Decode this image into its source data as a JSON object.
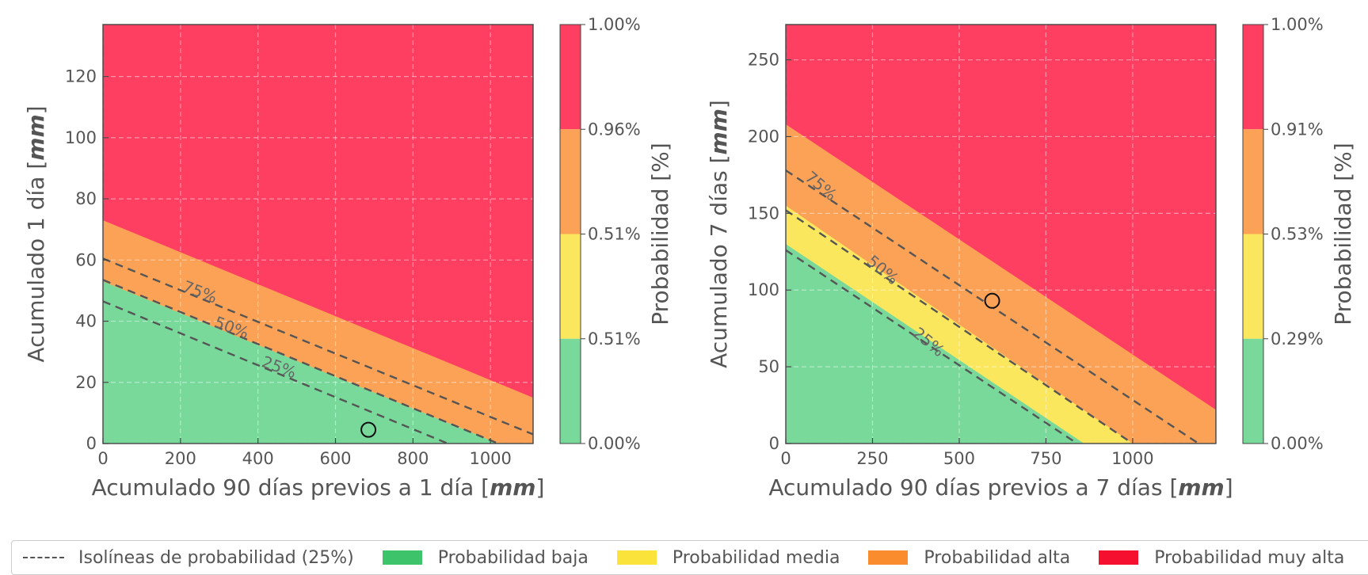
{
  "colors": {
    "low": "#78d99b",
    "medium": "#fbe75d",
    "high": "#fca256",
    "very_high": "#fe3f62",
    "legend_low": "#3dc46a",
    "legend_medium": "#fae43b",
    "legend_high": "#fb8c2d",
    "legend_very_high": "#f5102f",
    "isoline": "#555555"
  },
  "chart_data": [
    {
      "type": "area",
      "xlabel_prefix": "Acumulado 90 días previos a 1 día [",
      "xlabel_unit": "mm",
      "xlabel_suffix": "]",
      "ylabel_prefix": "Acumulado 1 día [",
      "ylabel_unit": "mm",
      "ylabel_suffix": "]",
      "xlim": [
        0,
        1110
      ],
      "ylim": [
        0,
        137
      ],
      "xticks": [
        "0",
        "200",
        "400",
        "600",
        "800",
        "1000"
      ],
      "yticks": [
        "0",
        "20",
        "40",
        "60",
        "80",
        "100",
        "120"
      ],
      "grid": true,
      "regions": [
        {
          "level": "low",
          "boundary": [
            [
              0,
              53
            ],
            [
              1020,
              0
            ]
          ]
        },
        {
          "level": "medium",
          "boundary": [
            [
              0,
              53
            ],
            [
              1020,
              0
            ]
          ]
        },
        {
          "level": "high",
          "boundary": [
            [
              0,
              73
            ],
            [
              1110,
              15
            ]
          ]
        },
        {
          "level": "very_high",
          "boundary": null
        }
      ],
      "isolines": [
        {
          "label": "25%",
          "points": [
            [
              0,
              46.5
            ],
            [
              890,
              0
            ]
          ]
        },
        {
          "label": "50%",
          "points": [
            [
              0,
              53.5
            ],
            [
              1020,
              0
            ]
          ]
        },
        {
          "label": "75%",
          "points": [
            [
              0,
              60.5
            ],
            [
              1110,
              3
            ]
          ]
        }
      ],
      "point": {
        "x": 685,
        "y": 4.5,
        "level": "low"
      },
      "colorbar": {
        "label": "Probabilidad [%]",
        "ticks": [
          "1.00%",
          "0.96%",
          "0.51%",
          "0.51%",
          "0.00%"
        ]
      }
    },
    {
      "type": "area",
      "xlabel_prefix": "Acumulado 90 días previos a 7 días [",
      "xlabel_unit": "mm",
      "xlabel_suffix": "]",
      "ylabel_prefix": "Acumulado 7 días [",
      "ylabel_unit": "mm",
      "ylabel_suffix": "]",
      "xlim": [
        0,
        1240
      ],
      "ylim": [
        0,
        273
      ],
      "xticks": [
        "0",
        "250",
        "500",
        "750",
        "1000"
      ],
      "yticks": [
        "0",
        "50",
        "100",
        "150",
        "200",
        "250"
      ],
      "grid": true,
      "regions": [
        {
          "level": "low",
          "boundary": [
            [
              0,
              130
            ],
            [
              860,
              0
            ]
          ]
        },
        {
          "level": "medium",
          "boundary": [
            [
              0,
              155
            ],
            [
              1000,
              0
            ]
          ]
        },
        {
          "level": "high",
          "boundary": [
            [
              0,
              208
            ],
            [
              1240,
              22
            ]
          ]
        },
        {
          "level": "very_high",
          "boundary": null
        }
      ],
      "isolines": [
        {
          "label": "25%",
          "points": [
            [
              0,
              126
            ],
            [
              840,
              0
            ]
          ]
        },
        {
          "label": "50%",
          "points": [
            [
              0,
              152
            ],
            [
              1000,
              0
            ]
          ]
        },
        {
          "label": "75%",
          "points": [
            [
              0,
              178
            ],
            [
              1190,
              0
            ]
          ]
        }
      ],
      "point": {
        "x": 595,
        "y": 93,
        "level": "high"
      },
      "colorbar": {
        "label": "Probabilidad [%]",
        "ticks": [
          "1.00%",
          "0.91%",
          "0.53%",
          "0.29%",
          "0.00%"
        ]
      }
    }
  ],
  "legend": {
    "items": [
      {
        "key": "isolines",
        "label": "Isolíneas de probabilidad (25%)"
      },
      {
        "key": "low",
        "label": "Probabilidad baja"
      },
      {
        "key": "medium",
        "label": "Probabilidad media"
      },
      {
        "key": "high",
        "label": "Probabilidad alta"
      },
      {
        "key": "very_high",
        "label": "Probabilidad muy alta"
      }
    ]
  }
}
